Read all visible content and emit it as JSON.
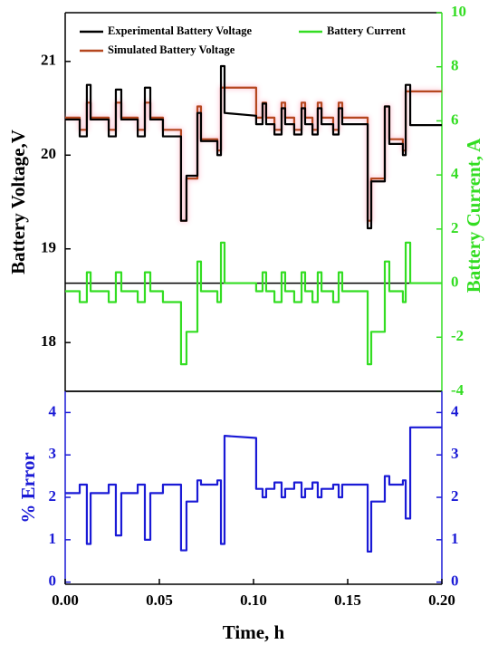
{
  "chart_data": [
    {
      "type": "line",
      "ylabel": "Battery Voltage,V",
      "y2label": "Battery Current, A",
      "xlim": [
        0,
        0.2
      ],
      "ylim": [
        17.48,
        21.52
      ],
      "yticks": [
        18,
        19,
        20,
        21
      ],
      "y2lim": [
        -4,
        10
      ],
      "y2ticks": [
        -4,
        -2,
        0,
        2,
        4,
        6,
        8,
        10
      ],
      "legend": "upper left",
      "x": [
        0,
        0.0077,
        0.0077,
        0.0115,
        0.0115,
        0.0135,
        0.0135,
        0.0231,
        0.0231,
        0.0269,
        0.0269,
        0.0298,
        0.0298,
        0.0385,
        0.0385,
        0.0423,
        0.0423,
        0.0452,
        0.0452,
        0.0519,
        0.0519,
        0.0615,
        0.0615,
        0.0644,
        0.0644,
        0.0702,
        0.0702,
        0.0721,
        0.0721,
        0.0808,
        0.0808,
        0.0827,
        0.0827,
        0.0846,
        0.0846,
        0.1014,
        0.1014,
        0.1048,
        0.1048,
        0.1067,
        0.1067,
        0.1111,
        0.1111,
        0.1149,
        0.1149,
        0.1168,
        0.1168,
        0.1216,
        0.1216,
        0.1255,
        0.1255,
        0.1274,
        0.1274,
        0.1313,
        0.1313,
        0.1341,
        0.1341,
        0.1361,
        0.1361,
        0.1423,
        0.1423,
        0.1452,
        0.1452,
        0.1471,
        0.1471,
        0.1606,
        0.1606,
        0.1625,
        0.1625,
        0.1697,
        0.1697,
        0.1721,
        0.1721,
        0.1793,
        0.1793,
        0.1808,
        0.1808,
        0.1832,
        0.1832,
        0.2
      ],
      "series": [
        {
          "name": "Experimental Battery Voltage",
          "color": "#000000",
          "values": [
            20.38,
            20.38,
            20.2,
            20.2,
            20.75,
            20.75,
            20.38,
            20.38,
            20.2,
            20.2,
            20.7,
            20.7,
            20.38,
            20.38,
            20.2,
            20.2,
            20.72,
            20.72,
            20.38,
            20.38,
            20.2,
            20.2,
            19.3,
            19.3,
            19.78,
            19.78,
            20.45,
            20.45,
            20.15,
            20.15,
            20.0,
            20.0,
            20.95,
            20.95,
            20.45,
            20.42,
            20.33,
            20.33,
            20.55,
            20.55,
            20.33,
            20.33,
            20.22,
            20.22,
            20.5,
            20.5,
            20.33,
            20.33,
            20.22,
            20.22,
            20.5,
            20.5,
            20.33,
            20.33,
            20.22,
            20.22,
            20.5,
            20.5,
            20.33,
            20.33,
            20.22,
            20.22,
            20.5,
            20.5,
            20.33,
            20.33,
            19.22,
            19.22,
            19.72,
            19.72,
            20.52,
            20.52,
            20.12,
            20.12,
            20.0,
            20.0,
            20.75,
            20.75,
            20.32,
            20.32
          ]
        },
        {
          "name": "Simulated Battery Voltage",
          "color": "#b5471f",
          "values": [
            20.4,
            20.4,
            20.27,
            20.27,
            20.56,
            20.56,
            20.4,
            20.4,
            20.27,
            20.27,
            20.56,
            20.56,
            20.4,
            20.4,
            20.27,
            20.27,
            20.56,
            20.56,
            20.4,
            20.4,
            20.27,
            20.27,
            19.3,
            19.3,
            19.75,
            19.75,
            20.52,
            20.52,
            20.17,
            20.17,
            20.05,
            20.05,
            20.72,
            20.72,
            20.72,
            20.72,
            20.4,
            20.4,
            20.56,
            20.56,
            20.4,
            20.4,
            20.27,
            20.27,
            20.56,
            20.56,
            20.4,
            20.4,
            20.27,
            20.27,
            20.56,
            20.56,
            20.4,
            20.4,
            20.27,
            20.27,
            20.56,
            20.56,
            20.4,
            20.4,
            20.27,
            20.27,
            20.56,
            20.56,
            20.4,
            20.4,
            19.3,
            19.3,
            19.75,
            19.75,
            20.52,
            20.52,
            20.17,
            20.17,
            20.05,
            20.05,
            20.68,
            20.68,
            20.68,
            20.68
          ]
        },
        {
          "name": "Battery Current",
          "color": "#33dd22",
          "axis": "y2",
          "values": [
            -0.3,
            -0.3,
            -0.7,
            -0.7,
            0.4,
            0.4,
            -0.3,
            -0.3,
            -0.7,
            -0.7,
            0.4,
            0.4,
            -0.3,
            -0.3,
            -0.7,
            -0.7,
            0.4,
            0.4,
            -0.3,
            -0.3,
            -0.7,
            -0.7,
            -3,
            -3,
            -1.8,
            -1.8,
            0.8,
            0.8,
            -0.3,
            -0.3,
            -0.7,
            -0.7,
            1.5,
            1.5,
            0,
            0,
            -0.3,
            -0.3,
            0.4,
            0.4,
            -0.3,
            -0.3,
            -0.7,
            -0.7,
            0.4,
            0.4,
            -0.3,
            -0.3,
            -0.7,
            -0.7,
            0.4,
            0.4,
            -0.3,
            -0.3,
            -0.7,
            -0.7,
            0.4,
            0.4,
            -0.3,
            -0.3,
            -0.7,
            -0.7,
            0.4,
            0.4,
            -0.3,
            -0.3,
            -3,
            -3,
            -1.8,
            -1.8,
            0.8,
            0.8,
            -0.3,
            -0.3,
            -0.7,
            -0.7,
            1.5,
            1.5,
            0,
            0
          ]
        }
      ]
    },
    {
      "type": "line",
      "xlabel": "Time, h",
      "ylabel": "% Error",
      "xlim": [
        0,
        0.2
      ],
      "xticks": [
        {
          "value": 0,
          "label": "0.00"
        },
        {
          "value": 0.05,
          "label": "0.05"
        },
        {
          "value": 0.1,
          "label": "0.10"
        },
        {
          "value": 0.15,
          "label": "0.15"
        },
        {
          "value": 0.2,
          "label": "0.20"
        }
      ],
      "ylim": [
        -0.05,
        4.5
      ],
      "yticks": [
        0,
        1,
        2,
        3,
        4
      ],
      "yticks_mirror": true,
      "x": [
        0,
        0.0077,
        0.0077,
        0.0115,
        0.0115,
        0.0135,
        0.0135,
        0.0231,
        0.0231,
        0.0269,
        0.0269,
        0.0298,
        0.0298,
        0.0385,
        0.0385,
        0.0423,
        0.0423,
        0.0452,
        0.0452,
        0.0519,
        0.0519,
        0.0615,
        0.0615,
        0.0644,
        0.0644,
        0.0702,
        0.0702,
        0.0721,
        0.0721,
        0.0808,
        0.0808,
        0.0827,
        0.0827,
        0.0846,
        0.0846,
        0.1014,
        0.1014,
        0.1048,
        0.1048,
        0.1067,
        0.1067,
        0.1111,
        0.1111,
        0.1149,
        0.1149,
        0.1168,
        0.1168,
        0.1216,
        0.1216,
        0.1255,
        0.1255,
        0.1274,
        0.1274,
        0.1313,
        0.1313,
        0.1341,
        0.1341,
        0.1361,
        0.1361,
        0.1423,
        0.1423,
        0.1452,
        0.1452,
        0.1471,
        0.1471,
        0.1606,
        0.1606,
        0.1625,
        0.1625,
        0.1697,
        0.1697,
        0.1721,
        0.1721,
        0.1793,
        0.1793,
        0.1808,
        0.1808,
        0.1832,
        0.1832,
        0.2
      ],
      "series": [
        {
          "color": "#1a1ad6",
          "values": [
            2.1,
            2.1,
            2.3,
            2.3,
            0.9,
            0.9,
            2.1,
            2.1,
            2.3,
            2.3,
            1.1,
            1.1,
            2.1,
            2.1,
            2.3,
            2.3,
            1.0,
            1.0,
            2.1,
            2.1,
            2.3,
            2.3,
            0.75,
            0.75,
            1.9,
            1.9,
            2.4,
            2.4,
            2.3,
            2.3,
            2.4,
            2.4,
            0.9,
            0.9,
            3.45,
            3.4,
            2.2,
            2.2,
            2.0,
            2.0,
            2.2,
            2.2,
            2.35,
            2.35,
            2.0,
            2.0,
            2.2,
            2.2,
            2.35,
            2.35,
            2.0,
            2.0,
            2.2,
            2.2,
            2.35,
            2.35,
            2.0,
            2.0,
            2.2,
            2.2,
            2.3,
            2.3,
            2.0,
            2.0,
            2.3,
            2.3,
            0.72,
            0.72,
            1.9,
            1.9,
            2.5,
            2.5,
            2.3,
            2.3,
            2.4,
            2.4,
            1.5,
            1.5,
            3.65,
            3.65
          ]
        }
      ]
    }
  ]
}
